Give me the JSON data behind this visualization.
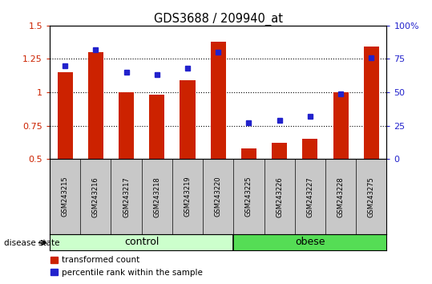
{
  "title": "GDS3688 / 209940_at",
  "samples": [
    "GSM243215",
    "GSM243216",
    "GSM243217",
    "GSM243218",
    "GSM243219",
    "GSM243220",
    "GSM243225",
    "GSM243226",
    "GSM243227",
    "GSM243228",
    "GSM243275"
  ],
  "transformed_count": [
    1.15,
    1.3,
    1.0,
    0.98,
    1.09,
    1.38,
    0.58,
    0.62,
    0.65,
    1.0,
    1.34
  ],
  "percentile_rank": [
    70,
    82,
    65,
    63,
    68,
    80,
    27,
    29,
    32,
    49,
    76
  ],
  "ylim_left": [
    0.5,
    1.5
  ],
  "ylim_right": [
    0,
    100
  ],
  "yticks_left": [
    0.5,
    0.75,
    1.0,
    1.25,
    1.5
  ],
  "yticks_right": [
    0,
    25,
    50,
    75,
    100
  ],
  "bar_color": "#CC2200",
  "dot_color": "#2222CC",
  "control_color": "#CCFFCC",
  "obese_color": "#55DD55",
  "label_color_left": "#CC2200",
  "label_color_right": "#2222CC",
  "tick_area_color": "#C8C8C8",
  "n_control": 6,
  "n_obese": 5,
  "bar_width": 0.5
}
